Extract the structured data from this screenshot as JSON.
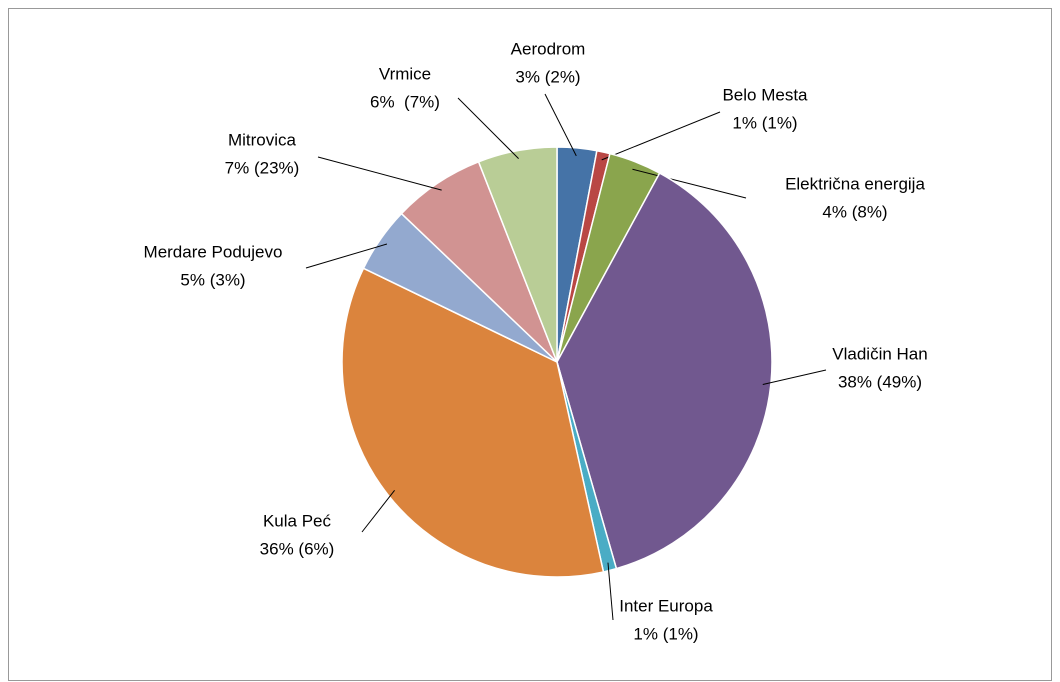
{
  "chart_data": {
    "type": "pie",
    "categories": [
      "Aerodrom",
      "Belo Mesta",
      "Električna energija",
      "Vladičin Han",
      "Inter Europa",
      "Kula Peć",
      "Merdare Podujevo",
      "Mitrovica",
      "Vrmice"
    ],
    "values": [
      3,
      1,
      4,
      38,
      1,
      36,
      5,
      7,
      6
    ],
    "value_labels": [
      "3% (2%)",
      "1% (1%)",
      "4% (8%)",
      "38% (49%)",
      "1% (1%)",
      "36% (6%)",
      "5% (3%)",
      "7% (23%)",
      "6%  (7%)"
    ],
    "colors": [
      "#4573a7",
      "#b94744",
      "#8aa54d",
      "#71588f",
      "#4aacc5",
      "#db843d",
      "#93a9cf",
      "#d19392",
      "#b9cd96"
    ]
  }
}
